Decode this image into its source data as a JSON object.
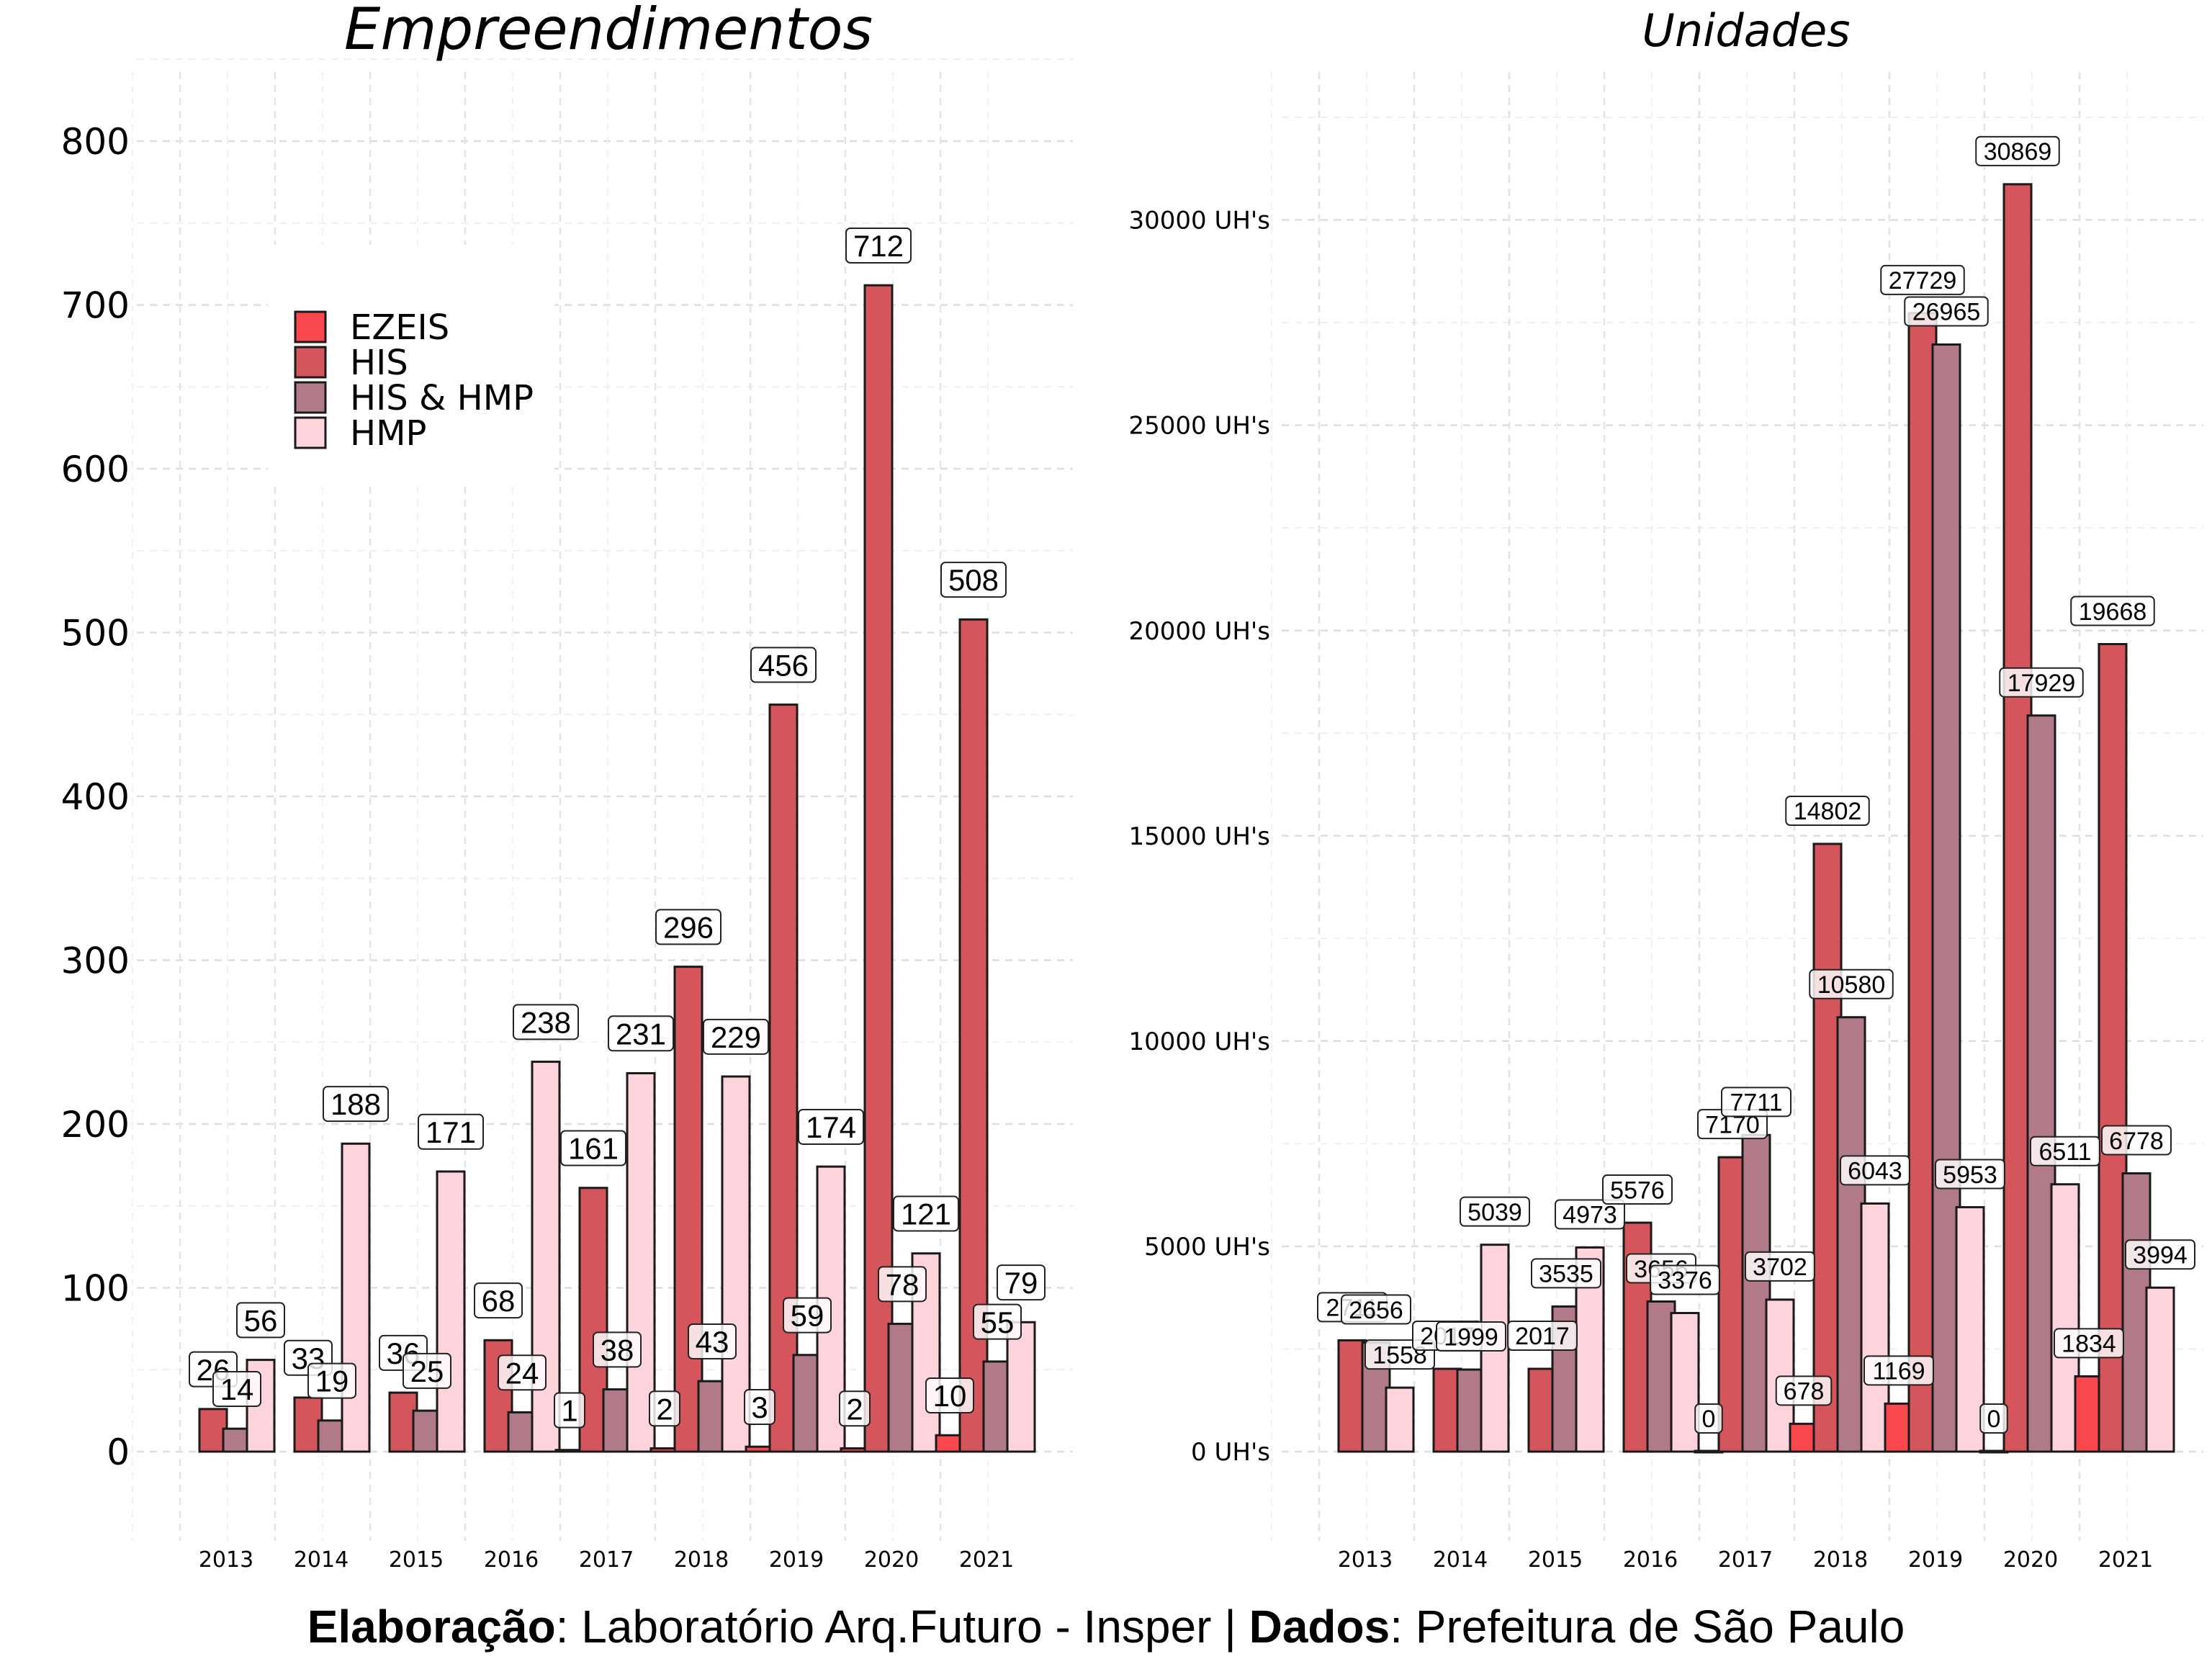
{
  "chart_data": [
    {
      "type": "bar",
      "title": "Empreendimentos",
      "categories": [
        "2013",
        "2014",
        "2015",
        "2016",
        "2017",
        "2018",
        "2019",
        "2020",
        "2021"
      ],
      "ylim": [
        -75,
        835
      ],
      "yticks": [
        "0",
        "100",
        "200",
        "300",
        "400",
        "500",
        "600",
        "700",
        "800"
      ],
      "ytick_values": [
        0,
        100,
        200,
        300,
        400,
        500,
        600,
        700,
        800
      ],
      "grid": true,
      "legend_position": "top-left",
      "series": [
        {
          "name": "EZEIS",
          "color": "#f8484e",
          "values": [
            null,
            null,
            null,
            null,
            1,
            2,
            3,
            2,
            10
          ]
        },
        {
          "name": "HIS",
          "color": "#d4555b",
          "values": [
            26,
            33,
            36,
            68,
            161,
            296,
            456,
            712,
            508
          ]
        },
        {
          "name": "HIS & HMP",
          "color": "#b07a88",
          "values": [
            14,
            19,
            25,
            24,
            38,
            43,
            59,
            78,
            55
          ]
        },
        {
          "name": "HMP",
          "color": "#fdd3dc",
          "values": [
            56,
            188,
            171,
            238,
            231,
            229,
            174,
            121,
            79
          ]
        }
      ]
    },
    {
      "type": "bar",
      "title": "Unidades",
      "categories": [
        "2013",
        "2014",
        "2015",
        "2016",
        "2017",
        "2018",
        "2019",
        "2020",
        "2021"
      ],
      "ylim": [
        -1500,
        33000
      ],
      "yticks": [
        "0 UH's",
        "5000 UH's",
        "10000 UH's",
        "15000 UH's",
        "20000 UH's",
        "25000 UH's",
        "30000 UH's"
      ],
      "ytick_values": [
        0,
        5000,
        10000,
        15000,
        20000,
        25000,
        30000
      ],
      "grid": true,
      "series": [
        {
          "name": "EZEIS",
          "color": "#f8484e",
          "values": [
            null,
            null,
            null,
            null,
            0,
            678,
            1169,
            0,
            1834
          ]
        },
        {
          "name": "HIS",
          "color": "#d4555b",
          "values": [
            2711,
            2017,
            2017,
            5576,
            7170,
            14802,
            27729,
            30869,
            19668
          ]
        },
        {
          "name": "HIS & HMP",
          "color": "#b07a88",
          "values": [
            2656,
            1999,
            3535,
            3656,
            7711,
            10580,
            26965,
            17929,
            6778
          ]
        },
        {
          "name": "HMP",
          "color": "#fdd3dc",
          "values": [
            1558,
            5039,
            4973,
            3376,
            3702,
            6043,
            5953,
            6511,
            3994
          ]
        }
      ]
    }
  ],
  "caption": {
    "label1": "Elaboração",
    "text1": ": Laboratório Arq.Futuro - Insper | ",
    "label2": "Dados",
    "text2": ": Prefeitura de São Paulo"
  }
}
